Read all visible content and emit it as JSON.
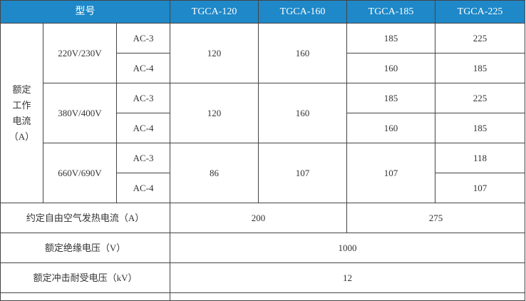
{
  "header": {
    "model_label": "型号",
    "models": [
      "TGCA-120",
      "TGCA-160",
      "TGCA-185",
      "TGCA-225"
    ]
  },
  "rated_current": {
    "label": "额定\n工作\n电流\n（A）",
    "groups": [
      {
        "voltage": "220V/230V",
        "ac3": "AC-3",
        "ac4": "AC-4",
        "m120": "120",
        "m160": "160",
        "m185_ac3": "185",
        "m185_ac4": "160",
        "m225_ac3": "225",
        "m225_ac4": "185"
      },
      {
        "voltage": "380V/400V",
        "ac3": "AC-3",
        "ac4": "AC-4",
        "m120": "120",
        "m160": "160",
        "m185_ac3": "185",
        "m185_ac4": "160",
        "m225_ac3": "225",
        "m225_ac4": "185"
      },
      {
        "voltage": "660V/690V",
        "ac3": "AC-3",
        "ac4": "AC-4",
        "m120": "86",
        "m160": "107",
        "m185": "107",
        "m225_ac3": "118",
        "m225_ac4": "107"
      }
    ]
  },
  "thermal_current": {
    "label": "约定自由空气发热电流（A）",
    "value_120_160": "200",
    "value_185_225": "275"
  },
  "insulation_voltage": {
    "label": "额定绝缘电压（V）",
    "value": "1000"
  },
  "impulse_voltage": {
    "label": "额定冲击耐受电压（kV）",
    "value": "12"
  },
  "colors": {
    "header_bg": "#1e88c8",
    "header_text": "#ffffff",
    "border": "#444444"
  }
}
